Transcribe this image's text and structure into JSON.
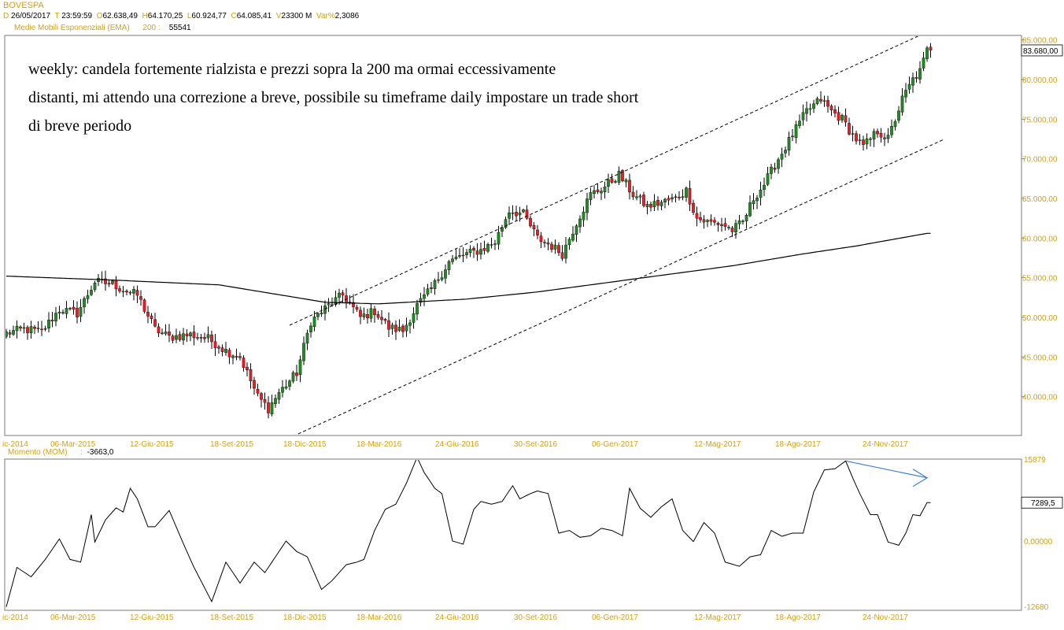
{
  "header": {
    "symbol": "BOVESPA",
    "items": [
      {
        "label": "D",
        "value": "26/05/2017"
      },
      {
        "label": "T",
        "value": "23:59:59"
      },
      {
        "label": "O",
        "value": "62.638,49"
      },
      {
        "label": "H",
        "value": "64.170,25"
      },
      {
        "label": "L",
        "value": "60.924,77"
      },
      {
        "label": "C",
        "value": "64.085,41"
      },
      {
        "label": "V",
        "value": "23300 M"
      },
      {
        "label": "Var%",
        "value": "2,3086"
      }
    ],
    "ema_label": "Medie Mobili Esponenziali (EMA)",
    "ema_period": "200",
    "ema_value": "55541"
  },
  "annotation": {
    "line1": "weekly: candela fortemente rialzista e prezzi sopra la 200 ma ormai eccessivamente",
    "line2": "distanti, mi attendo una correzione a breve, possibile su timeframe daily impostare un trade short",
    "line3": "di breve periodo"
  },
  "momentum": {
    "label": "Momento (MOM)",
    "value": "-3663,0"
  },
  "colors": {
    "up": "#228b22",
    "down": "#ee1c25",
    "axis_label": "#d4a017",
    "trendline": "#000000",
    "arrow": "#3a7fd5"
  },
  "chart_data": [
    {
      "type": "candlestick",
      "title": "BOVESPA",
      "timeframe": "weekly",
      "x_ticks": [
        "ic-2014",
        "06-Mar-2015",
        "12-Giu-2015",
        "18-Set-2015",
        "18-Dic-2015",
        "18-Mar-2016",
        "24-Giu-2016",
        "30-Set-2016",
        "06-Gen-2017",
        "12-Mag-2017",
        "18-Ago-2017",
        "24-Nov-2017"
      ],
      "y_ticks": [
        "85.000,00",
        "80.000,00",
        "75.000,00",
        "70.000,00",
        "65.000,00",
        "60.000,00",
        "55.000,00",
        "50.000,00",
        "45.000,00",
        "40.000,00"
      ],
      "ylim": [
        35000,
        85000
      ],
      "last_price_label": "83.680,00",
      "last_price": 83680,
      "close_keypoints": [
        [
          0,
          48000
        ],
        [
          5,
          48500
        ],
        [
          10,
          48200
        ],
        [
          15,
          51000
        ],
        [
          20,
          50500
        ],
        [
          25,
          54500
        ],
        [
          30,
          54200
        ],
        [
          33,
          53500
        ],
        [
          37,
          52800
        ],
        [
          42,
          48500
        ],
        [
          46,
          47500
        ],
        [
          52,
          47800
        ],
        [
          57,
          47300
        ],
        [
          62,
          45800
        ],
        [
          66,
          45000
        ],
        [
          71,
          40000
        ],
        [
          74,
          38500
        ],
        [
          77,
          40500
        ],
        [
          82,
          43000
        ],
        [
          86,
          49500
        ],
        [
          91,
          51500
        ],
        [
          95,
          52800
        ],
        [
          100,
          50000
        ],
        [
          104,
          50800
        ],
        [
          108,
          48700
        ],
        [
          112,
          48300
        ],
        [
          116,
          51500
        ],
        [
          120,
          53500
        ],
        [
          125,
          57000
        ],
        [
          130,
          58000
        ],
        [
          134,
          58500
        ],
        [
          138,
          59500
        ],
        [
          142,
          63500
        ],
        [
          146,
          63000
        ],
        [
          150,
          60000
        ],
        [
          154,
          59000
        ],
        [
          157,
          58000
        ],
        [
          161,
          62000
        ],
        [
          165,
          65500
        ],
        [
          169,
          66500
        ],
        [
          173,
          68000
        ],
        [
          177,
          65500
        ],
        [
          181,
          64000
        ],
        [
          185,
          64500
        ],
        [
          189,
          65000
        ],
        [
          192,
          66000
        ],
        [
          195,
          62500
        ],
        [
          198,
          62000
        ],
        [
          202,
          61800
        ],
        [
          205,
          61000
        ],
        [
          208,
          62000
        ],
        [
          211,
          65000
        ],
        [
          214,
          66800
        ],
        [
          218,
          70000
        ],
        [
          222,
          73000
        ],
        [
          226,
          76000
        ],
        [
          230,
          77500
        ],
        [
          233,
          76000
        ],
        [
          236,
          75000
        ],
        [
          239,
          73000
        ],
        [
          242,
          71500
        ],
        [
          246,
          73500
        ],
        [
          249,
          72500
        ],
        [
          253,
          77500
        ],
        [
          256,
          80000
        ],
        [
          258,
          81000
        ],
        [
          260,
          83680
        ]
      ],
      "ema200": {
        "name": "EMA 200",
        "keypoints": [
          [
            0,
            55200
          ],
          [
            30,
            54700
          ],
          [
            60,
            54100
          ],
          [
            90,
            51900
          ],
          [
            105,
            51700
          ],
          [
            130,
            52300
          ],
          [
            150,
            53200
          ],
          [
            180,
            55000
          ],
          [
            205,
            56500
          ],
          [
            225,
            58000
          ],
          [
            240,
            59000
          ],
          [
            260,
            60600
          ]
        ]
      },
      "channel_lines": [
        {
          "x": [
            80,
            260
          ],
          "y": [
            49000,
            86000
          ]
        },
        {
          "x": [
            81,
            265
          ],
          "y": [
            35000,
            72500
          ]
        }
      ]
    },
    {
      "type": "line",
      "title": "Momento (MOM)",
      "x_ticks": [
        "ic-2014",
        "06-Mar-2015",
        "12-Giu-2015",
        "18-Set-2015",
        "18-Dic-2015",
        "18-Mar-2016",
        "24-Giu-2016",
        "30-Set-2016",
        "06-Gen-2017",
        "12-Mag-2017",
        "18-Ago-2017",
        "24-Nov-2017"
      ],
      "y_ticks": [
        "15879",
        "0,00000",
        "-12680"
      ],
      "ylim": [
        -12680,
        15879
      ],
      "last_value_label": "7289,5",
      "keypoints": [
        [
          0,
          -12500
        ],
        [
          3,
          -5000
        ],
        [
          7,
          -6800
        ],
        [
          11,
          -3500
        ],
        [
          15,
          400
        ],
        [
          18,
          -3500
        ],
        [
          21,
          -4000
        ],
        [
          24,
          5000
        ],
        [
          25,
          -200
        ],
        [
          28,
          4000
        ],
        [
          31,
          6300
        ],
        [
          33,
          5500
        ],
        [
          35,
          10000
        ],
        [
          37,
          8000
        ],
        [
          40,
          2700
        ],
        [
          42,
          2700
        ],
        [
          46,
          5800
        ],
        [
          50,
          -500
        ],
        [
          53,
          -5000
        ],
        [
          58,
          -11500
        ],
        [
          62,
          -4000
        ],
        [
          66,
          -8000
        ],
        [
          70,
          -4000
        ],
        [
          73,
          -6000
        ],
        [
          76,
          -3000
        ],
        [
          79,
          0
        ],
        [
          82,
          -2000
        ],
        [
          85,
          -3000
        ],
        [
          89,
          -9200
        ],
        [
          92,
          -7500
        ],
        [
          96,
          -4500
        ],
        [
          99,
          -4000
        ],
        [
          101,
          -3500
        ],
        [
          104,
          2000
        ],
        [
          107,
          6000
        ],
        [
          110,
          7000
        ],
        [
          113,
          11000
        ],
        [
          116,
          15879
        ],
        [
          118,
          13000
        ],
        [
          121,
          10000
        ],
        [
          123,
          9000
        ],
        [
          126,
          0
        ],
        [
          129,
          -600
        ],
        [
          132,
          6000
        ],
        [
          134,
          7500
        ],
        [
          137,
          7000
        ],
        [
          140,
          7500
        ],
        [
          143,
          10500
        ],
        [
          145,
          8000
        ],
        [
          148,
          9000
        ],
        [
          150,
          9500
        ],
        [
          153,
          9000
        ],
        [
          156,
          1500
        ],
        [
          159,
          2000
        ],
        [
          162,
          700
        ],
        [
          165,
          1000
        ],
        [
          168,
          2400
        ],
        [
          171,
          2000
        ],
        [
          174,
          1000
        ],
        [
          176,
          10000
        ],
        [
          179,
          6200
        ],
        [
          182,
          4500
        ],
        [
          185,
          6500
        ],
        [
          188,
          8000
        ],
        [
          191,
          2000
        ],
        [
          194,
          -100
        ],
        [
          197,
          3500
        ],
        [
          200,
          1500
        ],
        [
          203,
          -4000
        ],
        [
          207,
          -4800
        ],
        [
          210,
          -3000
        ],
        [
          213,
          -2600
        ],
        [
          216,
          2000
        ],
        [
          219,
          900
        ],
        [
          222,
          1500
        ],
        [
          225,
          1500
        ],
        [
          228,
          9300
        ],
        [
          231,
          13500
        ],
        [
          234,
          13700
        ],
        [
          237,
          15200
        ],
        [
          239,
          12000
        ],
        [
          241,
          9000
        ],
        [
          244,
          5000
        ],
        [
          246,
          5000
        ],
        [
          249,
          -200
        ],
        [
          252,
          -800
        ],
        [
          254,
          1500
        ],
        [
          256,
          5000
        ],
        [
          258,
          4800
        ],
        [
          260,
          7290
        ]
      ],
      "arrow": {
        "from": [
          237,
          15200
        ],
        "to": [
          260,
          12000
        ]
      }
    }
  ]
}
